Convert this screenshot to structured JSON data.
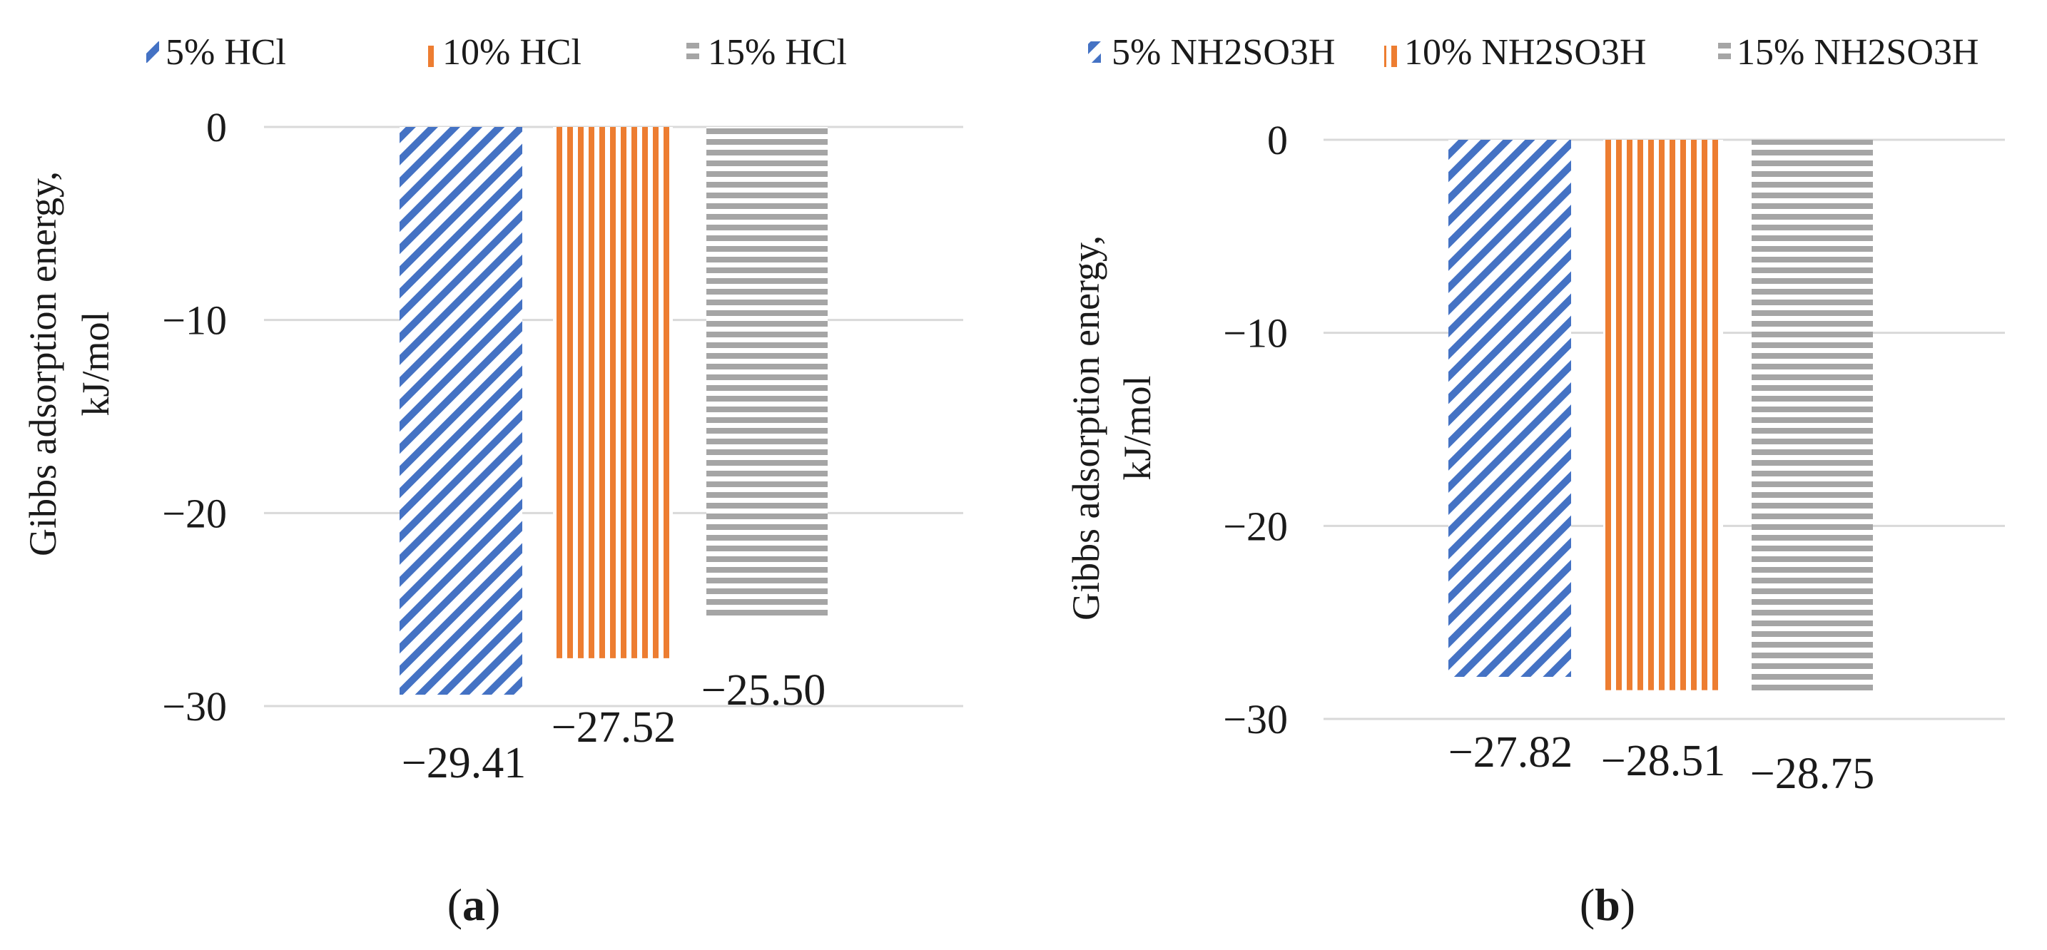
{
  "figure": {
    "panels": [
      "a",
      "b"
    ]
  },
  "colors": {
    "series": [
      "#4472c4",
      "#ed7d31",
      "#a5a5a5"
    ],
    "grid": "#d9d9d9"
  },
  "chart_data": [
    {
      "type": "bar",
      "panel_label": "a",
      "panel_text": {
        "open": "(",
        "letter": "a",
        "close": ")"
      },
      "title": "",
      "ylabel": [
        "Gibbs adsorption energy,",
        "kJ/mol"
      ],
      "xlabel": "",
      "yticks": [
        0,
        -10,
        -20,
        -30
      ],
      "ytick_labels": [
        "0",
        "−10",
        "−20",
        "−30"
      ],
      "ylim": [
        -30,
        0
      ],
      "grid": true,
      "legend_position": "top",
      "series": [
        {
          "name": "5% HCl",
          "value": -29.41,
          "label": "−29.41",
          "pattern": "diagonal"
        },
        {
          "name": "10% HCl",
          "value": -27.52,
          "label": "−27.52",
          "pattern": "vertical"
        },
        {
          "name": "15% HCl",
          "value": -25.5,
          "label": "−25.50",
          "pattern": "horizontal"
        }
      ]
    },
    {
      "type": "bar",
      "panel_label": "b",
      "panel_text": {
        "open": "(",
        "letter": "b",
        "close": ")"
      },
      "title": "",
      "ylabel": [
        "Gibbs adsorption energy,",
        "kJ/mol"
      ],
      "xlabel": "",
      "yticks": [
        0,
        -10,
        -20,
        -30
      ],
      "ytick_labels": [
        "0",
        "−10",
        "−20",
        "−30"
      ],
      "ylim": [
        -30,
        0
      ],
      "grid": true,
      "legend_position": "top",
      "series": [
        {
          "name": "5% NH2SO3H",
          "value": -27.82,
          "label": "−27.82",
          "pattern": "diagonal"
        },
        {
          "name": "10% NH2SO3H",
          "value": -28.51,
          "label": "−28.51",
          "pattern": "vertical"
        },
        {
          "name": "15% NH2SO3H",
          "value": -28.75,
          "label": "−28.75",
          "pattern": "horizontal"
        }
      ]
    }
  ]
}
